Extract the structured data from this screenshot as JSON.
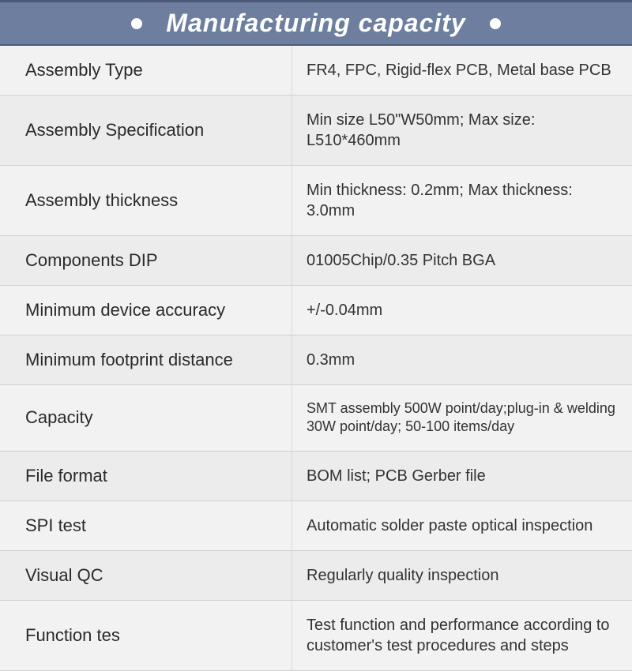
{
  "header": {
    "title": "Manufacturing capacity",
    "background_color": "#6d7e9e",
    "text_color": "#ffffff",
    "dot_color": "#ffffff",
    "title_fontsize": 32
  },
  "table": {
    "row_bg_odd": "#f2f2f2",
    "row_bg_even": "#ececec",
    "border_color": "#d0d0d0",
    "label_fontsize": 22,
    "value_fontsize": 20,
    "label_color": "#2a2a2a",
    "value_color": "#333333",
    "label_col_width": 370,
    "rows": [
      {
        "label": "Assembly Type",
        "value": "FR4, FPC, Rigid-flex PCB, Metal base PCB"
      },
      {
        "label": "Assembly Specification",
        "value": "Min size L50\"W50mm; Max size: L510*460mm"
      },
      {
        "label": "Assembly thickness",
        "value": "Min thickness: 0.2mm; Max thickness: 3.0mm"
      },
      {
        "label": "Components DIP",
        "value": "01005Chip/0.35 Pitch BGA"
      },
      {
        "label": "Minimum device accuracy",
        "value": "+/-0.04mm"
      },
      {
        "label": "Minimum footprint distance",
        "value": "0.3mm"
      },
      {
        "label": "Capacity",
        "value": "SMT assembly 500W point/day;plug-in & welding 30W point/day; 50-100 items/day",
        "small": true
      },
      {
        "label": "File format",
        "value": "BOM list; PCB Gerber file"
      },
      {
        "label": "SPI test",
        "value": "Automatic solder paste optical inspection"
      },
      {
        "label": "Visual QC",
        "value": "Regularly quality inspection"
      },
      {
        "label": "Function tes",
        "value": "Test function and performance according to customer's test procedures and steps"
      }
    ]
  }
}
